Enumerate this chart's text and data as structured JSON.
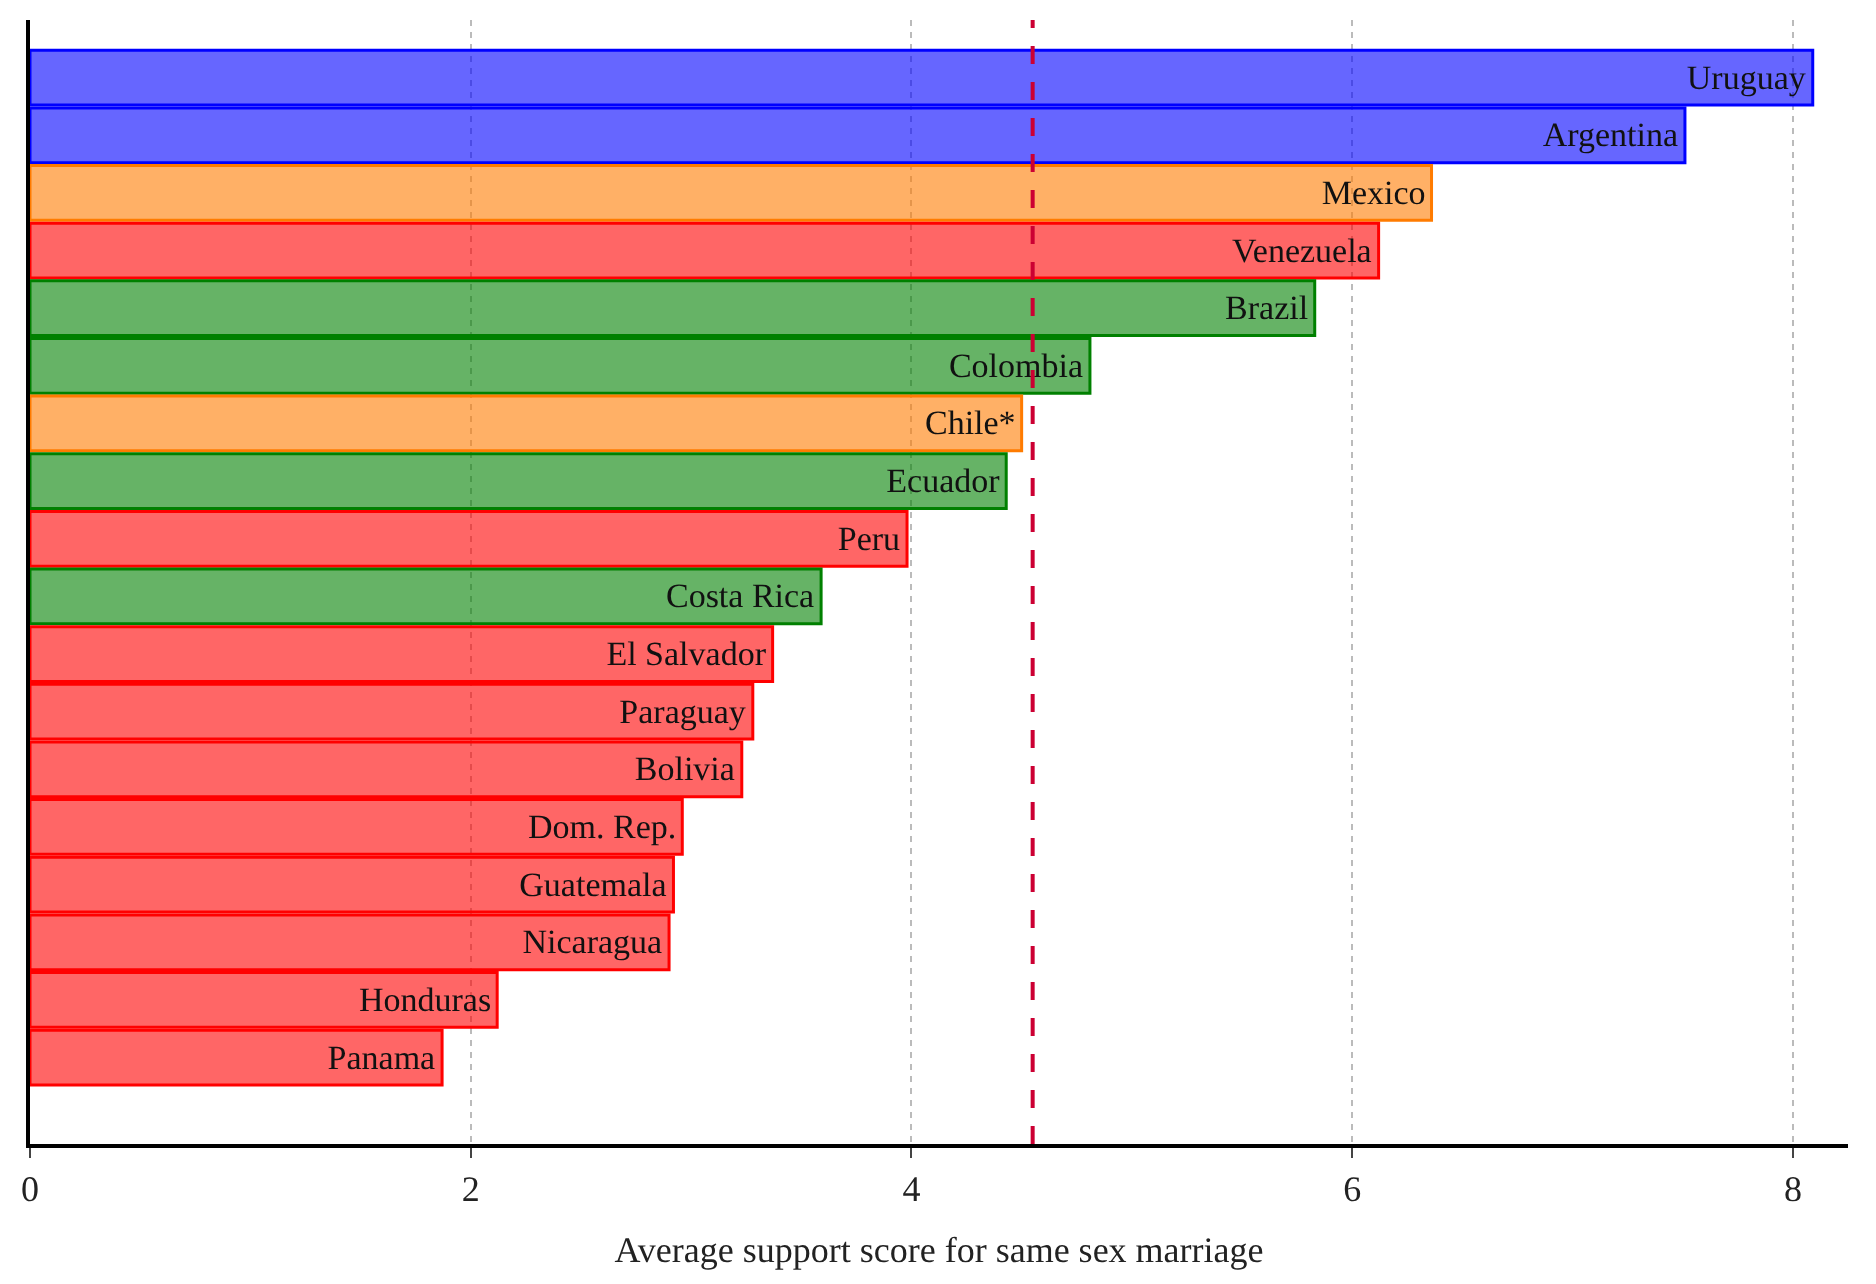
{
  "chart_data": {
    "type": "bar",
    "orientation": "horizontal",
    "xlabel": "Average support score for same sex marriage",
    "categories": [
      "Uruguay",
      "Argentina",
      "Mexico",
      "Venezuela",
      "Brazil",
      "Colombia",
      "Chile*",
      "Ecuador",
      "Peru",
      "Costa Rica",
      "El Salvador",
      "Paraguay",
      "Bolivia",
      "Dom. Rep.",
      "Guatemala",
      "Nicaragua",
      "Honduras",
      "Panama"
    ],
    "values": [
      8.09,
      7.51,
      6.36,
      6.12,
      5.83,
      4.81,
      4.5,
      4.43,
      3.98,
      3.59,
      3.37,
      3.28,
      3.23,
      2.96,
      2.92,
      2.9,
      2.12,
      1.87
    ],
    "colors": [
      "#6666ff",
      "#6666ff",
      "#ffb066",
      "#ff6666",
      "#66b366",
      "#66b366",
      "#ffb066",
      "#66b366",
      "#ff6666",
      "#66b366",
      "#ff6666",
      "#ff6666",
      "#ff6666",
      "#ff6666",
      "#ff6666",
      "#ff6666",
      "#ff6666",
      "#ff6666"
    ],
    "xlim": [
      0,
      8.25
    ],
    "xticks": [
      0,
      2,
      4,
      6,
      8
    ],
    "grid": "x",
    "tick_labels": "x",
    "ref_lines": [
      {
        "axis": "x",
        "value": 4.55,
        "label": null,
        "color": "#cc0033",
        "line_style": "dashed"
      }
    ]
  }
}
